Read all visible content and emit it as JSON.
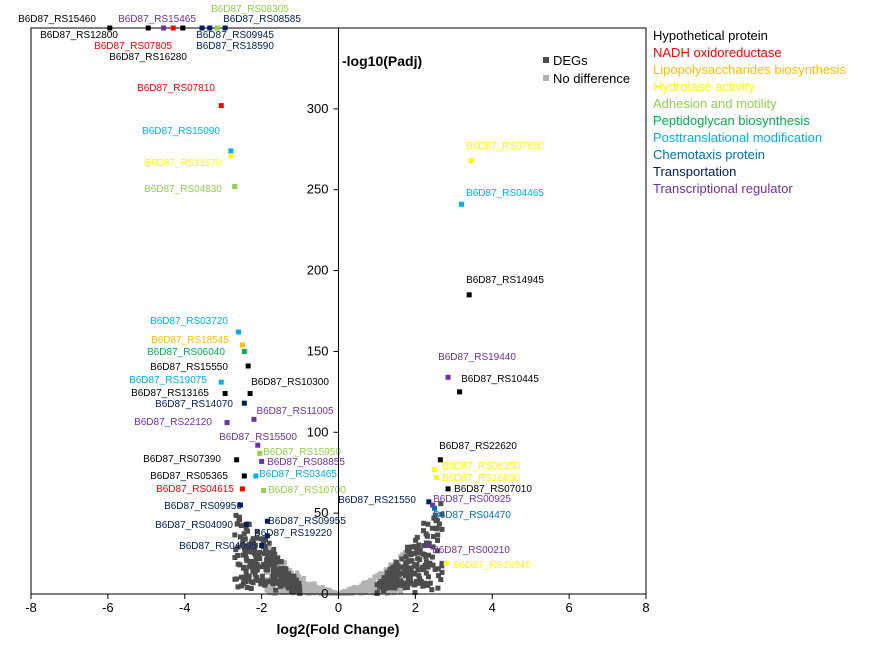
{
  "chart_data": {
    "type": "scatter",
    "title": "",
    "xlabel": "log2(Fold Change)",
    "ylabel": "-log10(Padj)",
    "xlim": [
      -8,
      8
    ],
    "ylim": [
      0,
      350
    ],
    "xticks": [
      -8,
      -6,
      -4,
      -2,
      0,
      2,
      4,
      6,
      8
    ],
    "yticks": [
      0,
      50,
      100,
      150,
      200,
      250,
      300
    ],
    "legend": [
      {
        "name": "DEGs",
        "color": "#4d4d4d"
      },
      {
        "name": "No difference",
        "color": "#b3b3b3"
      }
    ],
    "categories": [
      {
        "name": "Hypothetical protein",
        "color": "#000000"
      },
      {
        "name": "NADH oxidoreductase",
        "color": "#ff0000"
      },
      {
        "name": "Lipopolysaccharides biosynthesis",
        "color": "#ffc000"
      },
      {
        "name": "Hydrolase activity",
        "color": "#ffff00"
      },
      {
        "name": "Adhesion and motility",
        "color": "#92d050"
      },
      {
        "name": "Peptidoglycan biosynthesis",
        "color": "#00b050"
      },
      {
        "name": "Posttranslational modification",
        "color": "#00b0f0"
      },
      {
        "name": "Chemotaxis protein",
        "color": "#0070c0"
      },
      {
        "name": "Transportation",
        "color": "#002060"
      },
      {
        "name": "Transcriptional regulator",
        "color": "#7030a0"
      }
    ],
    "annotated_genes": [
      {
        "gene": "B6D87_RS15460",
        "x": -5.95,
        "y": 350,
        "category": "Hypothetical protein"
      },
      {
        "gene": "B6D87_RS15465",
        "x": -4.55,
        "y": 350,
        "category": "Transcriptional regulator"
      },
      {
        "gene": "B6D87_RS08305",
        "x": -3.15,
        "y": 350,
        "category": "Adhesion and motility"
      },
      {
        "gene": "B6D87_RS08585",
        "x": -2.95,
        "y": 350,
        "category": "Transportation"
      },
      {
        "gene": "B6D87_RS12800",
        "x": -4.95,
        "y": 350,
        "category": "Hypothetical protein"
      },
      {
        "gene": "B6D87_RS09945",
        "x": -3.35,
        "y": 350,
        "category": "Transportation"
      },
      {
        "gene": "B6D87_RS07805",
        "x": -4.3,
        "y": 350,
        "category": "NADH oxidoreductase"
      },
      {
        "gene": "B6D87_RS18590",
        "x": -3.55,
        "y": 350,
        "category": "Transportation"
      },
      {
        "gene": "B6D87_RS16280",
        "x": -4.05,
        "y": 350,
        "category": "Hypothetical protein"
      },
      {
        "gene": "B6D87_RS07810",
        "x": -3.05,
        "y": 302,
        "category": "NADH oxidoreductase"
      },
      {
        "gene": "B6D87_RS15090",
        "x": -2.8,
        "y": 274,
        "category": "Posttranslational modification"
      },
      {
        "gene": "B6D87_RS11570",
        "x": -2.8,
        "y": 271,
        "category": "Hydrolase activity"
      },
      {
        "gene": "B6D87_RS04830",
        "x": -2.7,
        "y": 252,
        "category": "Adhesion and motility"
      },
      {
        "gene": "B6D87_RS07680",
        "x": 3.45,
        "y": 268,
        "category": "Hydrolase activity"
      },
      {
        "gene": "B6D87_RS04465",
        "x": 3.2,
        "y": 241,
        "category": "Posttranslational modification"
      },
      {
        "gene": "B6D87_RS14945",
        "x": 3.4,
        "y": 185,
        "category": "Hypothetical protein"
      },
      {
        "gene": "B6D87_RS03720",
        "x": -2.6,
        "y": 162,
        "category": "Posttranslational modification"
      },
      {
        "gene": "B6D87_RS18545",
        "x": -2.5,
        "y": 154,
        "category": "Lipopolysaccharides biosynthesis"
      },
      {
        "gene": "B6D87_RS06040",
        "x": -2.45,
        "y": 150,
        "category": "Peptidoglycan biosynthesis"
      },
      {
        "gene": "B6D87_RS15550",
        "x": -2.35,
        "y": 141,
        "category": "Hypothetical protein"
      },
      {
        "gene": "B6D87_RS19075",
        "x": -3.05,
        "y": 131,
        "category": "Posttranslational modification"
      },
      {
        "gene": "B6D87_RS10300",
        "x": -2.3,
        "y": 124,
        "category": "Hypothetical protein"
      },
      {
        "gene": "B6D87_RS13165",
        "x": -2.95,
        "y": 124,
        "category": "Hypothetical protein"
      },
      {
        "gene": "B6D87_RS14070",
        "x": -2.45,
        "y": 118,
        "category": "Transportation"
      },
      {
        "gene": "B6D87_RS11005",
        "x": -2.2,
        "y": 108,
        "category": "Transcriptional regulator"
      },
      {
        "gene": "B6D87_RS22120",
        "x": -2.9,
        "y": 106,
        "category": "Transcriptional regulator"
      },
      {
        "gene": "B6D87_RS19440",
        "x": 2.85,
        "y": 134,
        "category": "Transcriptional regulator"
      },
      {
        "gene": "B6D87_RS10445",
        "x": 3.15,
        "y": 125,
        "category": "Hypothetical protein"
      },
      {
        "gene": "B6D87_RS15500",
        "x": -2.1,
        "y": 92,
        "category": "Transcriptional regulator"
      },
      {
        "gene": "B6D87_RS15950",
        "x": -2.05,
        "y": 87,
        "category": "Adhesion and motility"
      },
      {
        "gene": "B6D87_RS07390",
        "x": -2.65,
        "y": 83,
        "category": "Hypothetical protein"
      },
      {
        "gene": "B6D87_RS08855",
        "x": -2.0,
        "y": 82,
        "category": "Transcriptional regulator"
      },
      {
        "gene": "B6D87_RS05365",
        "x": -2.45,
        "y": 73,
        "category": "Hypothetical protein"
      },
      {
        "gene": "B6D87_RS03465",
        "x": -2.15,
        "y": 73,
        "category": "Posttranslational modification"
      },
      {
        "gene": "B6D87_RS04615",
        "x": -2.5,
        "y": 65,
        "category": "NADH oxidoreductase"
      },
      {
        "gene": "B6D87_RS10700",
        "x": -1.95,
        "y": 64,
        "category": "Adhesion and motility"
      },
      {
        "gene": "B6D87_RS09950",
        "x": -2.55,
        "y": 55,
        "category": "Transportation"
      },
      {
        "gene": "B6D87_RS04090",
        "x": -2.4,
        "y": 43,
        "category": "Transportation"
      },
      {
        "gene": "B6D87_RS09955",
        "x": -1.85,
        "y": 45,
        "category": "Transportation"
      },
      {
        "gene": "B6D87_RS19220",
        "x": -1.85,
        "y": 36,
        "category": "Transportation"
      },
      {
        "gene": "B6D87_RS04095",
        "x": -2.0,
        "y": 30,
        "category": "Transportation"
      },
      {
        "gene": "B6D87_RS22620",
        "x": 2.65,
        "y": 83,
        "category": "Hypothetical protein"
      },
      {
        "gene": "B6D87_RS08350",
        "x": 2.5,
        "y": 77,
        "category": "Hydrolase activity"
      },
      {
        "gene": "B6D87_RS16690",
        "x": 2.55,
        "y": 72,
        "category": "Hydrolase activity"
      },
      {
        "gene": "B6D87_RS07010",
        "x": 2.85,
        "y": 65,
        "category": "Hypothetical protein"
      },
      {
        "gene": "B6D87_RS21550",
        "x": 2.35,
        "y": 57,
        "category": "Transportation"
      },
      {
        "gene": "B6D87_RS00925",
        "x": 2.45,
        "y": 55,
        "category": "Transcriptional regulator"
      },
      {
        "gene": "B6D87_RS04470",
        "x": 2.5,
        "y": 53,
        "category": "Chemotaxis protein"
      },
      {
        "gene": "B6D87_RS00210",
        "x": 2.35,
        "y": 30,
        "category": "Transcriptional regulator"
      },
      {
        "gene": "B6D87_RS16940",
        "x": 2.8,
        "y": 19,
        "category": "Hydrolase activity"
      }
    ]
  }
}
